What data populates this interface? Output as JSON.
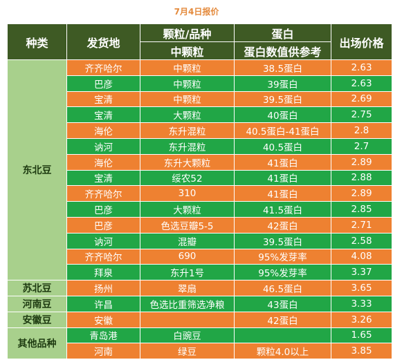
{
  "page_title": "7月4日报价",
  "header": {
    "category": "种类",
    "origin": "发货地",
    "grain_top": "颗粒/品种",
    "grain_bottom": "中颗粒",
    "protein_top": "蛋白",
    "protein_bottom": "蛋白数值供参考",
    "price": "出场价格"
  },
  "groups": [
    {
      "category": "东北豆",
      "rows": [
        {
          "origin": "齐齐哈尔",
          "grain": "中颗粒",
          "protein": "38.5蛋白",
          "price": "2.63"
        },
        {
          "origin": "巴彦",
          "grain": "中颗粒",
          "protein": "39蛋白",
          "price": "2.63"
        },
        {
          "origin": "宝清",
          "grain": "中颗粒",
          "protein": "39.5蛋白",
          "price": "2.69"
        },
        {
          "origin": "宝清",
          "grain": "大颗粒",
          "protein": "40蛋白",
          "price": "2.75"
        },
        {
          "origin": "海伦",
          "grain": "东升混粒",
          "protein": "40.5蛋白-41蛋白",
          "price": "2.8"
        },
        {
          "origin": "讷河",
          "grain": "东升混粒",
          "protein": "40.5蛋白",
          "price": "2.7"
        },
        {
          "origin": "海伦",
          "grain": "东升大颗粒",
          "protein": "41蛋白",
          "price": "2.89"
        },
        {
          "origin": "宝清",
          "grain": "绥农52",
          "protein": "41蛋白",
          "price": "2.88"
        },
        {
          "origin": "齐齐哈尔",
          "grain": "310",
          "protein": "41蛋白",
          "price": "2.89"
        },
        {
          "origin": "巴彦",
          "grain": "大颗粒",
          "protein": "41.5蛋白",
          "price": "2.85"
        },
        {
          "origin": "巴彦",
          "grain": "色选豆瓣5-5",
          "protein": "42蛋白",
          "price": "2.71"
        },
        {
          "origin": "讷河",
          "grain": "混瓣",
          "protein": "39.5蛋白",
          "price": "2.58"
        },
        {
          "origin": "齐齐哈尔",
          "grain": "690",
          "protein": "95%发芽率",
          "price": "4.08"
        },
        {
          "origin": "拜泉",
          "grain": "东升1号",
          "protein": "95%发芽率",
          "price": "3.37"
        }
      ]
    },
    {
      "category": "苏北豆",
      "rows": [
        {
          "origin": "扬州",
          "grain": "翠扇",
          "protein": "46.5蛋白",
          "price": "3.65"
        }
      ]
    },
    {
      "category": "河南豆",
      "rows": [
        {
          "origin": "许昌",
          "grain": "色选比重筛选净粮",
          "protein": "43蛋白",
          "price": "3.33"
        }
      ]
    },
    {
      "category": "安徽豆",
      "rows": [
        {
          "origin": "安徽",
          "grain": "",
          "protein": "42蛋白",
          "price": "3.26"
        }
      ]
    },
    {
      "category": "其他品种",
      "rows": [
        {
          "origin": "青岛港",
          "grain": "白豌豆",
          "protein": "",
          "price": "1.65"
        },
        {
          "origin": "河南",
          "grain": "绿豆",
          "protein": "颗粒4.0以上",
          "price": "3.85"
        }
      ]
    }
  ],
  "colors": {
    "header_bg": "#3e5a24",
    "category_bg": "#a8d08c",
    "row_orange": "#ee8131",
    "row_green": "#21a646",
    "title": "#e48a3c"
  }
}
